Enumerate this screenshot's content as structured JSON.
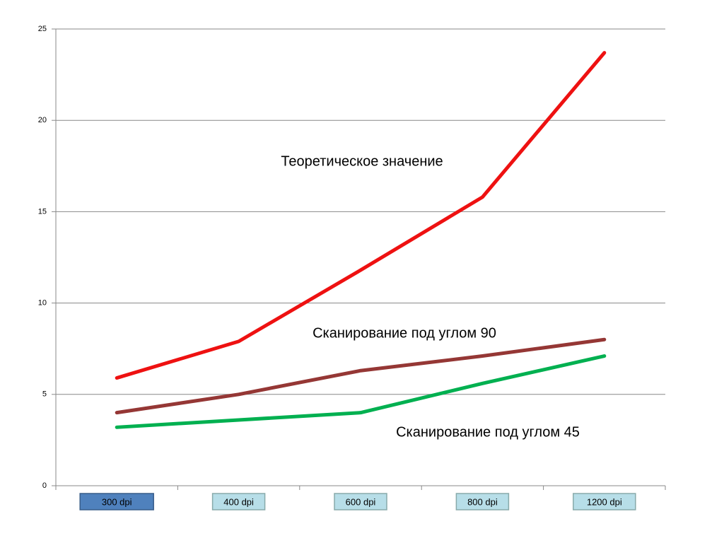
{
  "chart_data": {
    "type": "line",
    "categories": [
      "300 dpi",
      "400 dpi",
      "600 dpi",
      "800 dpi",
      "1200 dpi"
    ],
    "series": [
      {
        "name": "Теоретическое значение",
        "color": "#ee1111",
        "values": [
          5.9,
          7.9,
          11.8,
          15.8,
          23.7
        ]
      },
      {
        "name": "Сканирование под углом 90",
        "color": "#953735",
        "values": [
          4.0,
          5.0,
          6.3,
          7.1,
          8.0
        ]
      },
      {
        "name": "Сканирование под углом 45",
        "color": "#00b050",
        "values": [
          3.2,
          3.6,
          4.0,
          5.6,
          7.1
        ]
      }
    ],
    "ylim": [
      0,
      25
    ],
    "yticks": [
      0,
      5,
      10,
      15,
      20,
      25
    ],
    "grid": true
  }
}
